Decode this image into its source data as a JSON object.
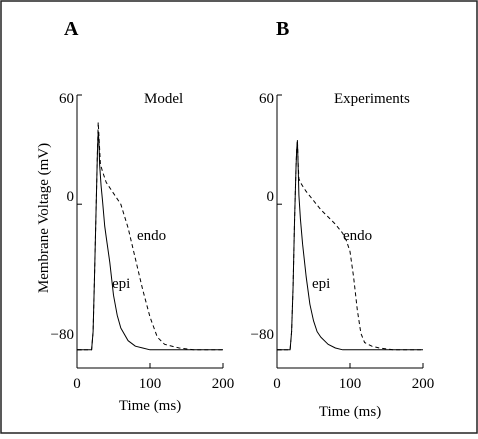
{
  "panels": [
    {
      "letter": "A",
      "annotation": "Model",
      "ylabel": "Membrane Voltage (mV)",
      "xlabel": "Time (ms)",
      "yticks": [
        "60",
        "0",
        "-80"
      ],
      "xticks": [
        "0",
        "100",
        "200"
      ],
      "series_labels": [
        "endo",
        "epi"
      ]
    },
    {
      "letter": "B",
      "annotation": "Experiments",
      "ylabel": "",
      "xlabel": "Time (ms)",
      "yticks": [
        "60",
        "0",
        "-80"
      ],
      "xticks": [
        "0",
        "100",
        "200"
      ],
      "series_labels": [
        "endo",
        "epi"
      ]
    }
  ],
  "chart_data": [
    {
      "type": "line",
      "title": "Model",
      "xlabel": "Time (ms)",
      "ylabel": "Membrane Voltage (mV)",
      "xlim": [
        0,
        200
      ],
      "ylim": [
        -90,
        60
      ],
      "xticks": [
        0,
        100,
        200
      ],
      "yticks": [
        60,
        0,
        -80
      ],
      "grid": false,
      "series": [
        {
          "name": "endo",
          "style": "dashed",
          "x": [
            0,
            20,
            22,
            24,
            26,
            28,
            29,
            30,
            32,
            35,
            40,
            50,
            60,
            70,
            80,
            90,
            100,
            110,
            120,
            140,
            160,
            200
          ],
          "y": [
            -80,
            -80,
            -70,
            -40,
            -5,
            28,
            45,
            38,
            22,
            18,
            12,
            6,
            0,
            -13,
            -30,
            -47,
            -62,
            -73,
            -77,
            -79,
            -80,
            -80
          ]
        },
        {
          "name": "epi",
          "style": "solid",
          "x": [
            0,
            20,
            22,
            24,
            26,
            28,
            29,
            30,
            31,
            33,
            35,
            38,
            40,
            45,
            50,
            55,
            60,
            70,
            80,
            90,
            100,
            120,
            200
          ],
          "y": [
            -80,
            -80,
            -70,
            -40,
            -5,
            28,
            40,
            35,
            22,
            10,
            2,
            -12,
            -18,
            -32,
            -50,
            -61,
            -68,
            -75,
            -78,
            -79,
            -80,
            -80,
            -80
          ]
        }
      ]
    },
    {
      "type": "line",
      "title": "Experiments",
      "xlabel": "Time (ms)",
      "ylabel": "",
      "xlim": [
        0,
        200
      ],
      "ylim": [
        -90,
        60
      ],
      "xticks": [
        0,
        100,
        200
      ],
      "yticks": [
        60,
        0,
        -80
      ],
      "grid": false,
      "series": [
        {
          "name": "endo",
          "style": "dashed",
          "x": [
            0,
            18,
            20,
            22,
            24,
            26,
            27,
            28,
            29,
            30,
            32,
            35,
            40,
            50,
            60,
            70,
            80,
            90,
            95,
            100,
            105,
            110,
            115,
            120,
            130,
            140,
            160,
            200
          ],
          "y": [
            -80,
            -80,
            -70,
            -45,
            -10,
            20,
            30,
            35,
            22,
            14,
            12,
            10,
            7,
            2,
            -3,
            -7,
            -11,
            -16,
            -20,
            -26,
            -40,
            -58,
            -71,
            -76,
            -78,
            -79,
            -80,
            -80
          ]
        },
        {
          "name": "epi",
          "style": "solid",
          "x": [
            0,
            18,
            20,
            22,
            24,
            26,
            27,
            28,
            29,
            30,
            32,
            35,
            40,
            45,
            50,
            55,
            60,
            70,
            80,
            90,
            100,
            120,
            200
          ],
          "y": [
            -80,
            -80,
            -70,
            -45,
            -10,
            20,
            30,
            35,
            20,
            5,
            -8,
            -22,
            -40,
            -55,
            -64,
            -70,
            -73,
            -77,
            -79,
            -80,
            -80,
            -80,
            -80
          ]
        }
      ]
    }
  ]
}
